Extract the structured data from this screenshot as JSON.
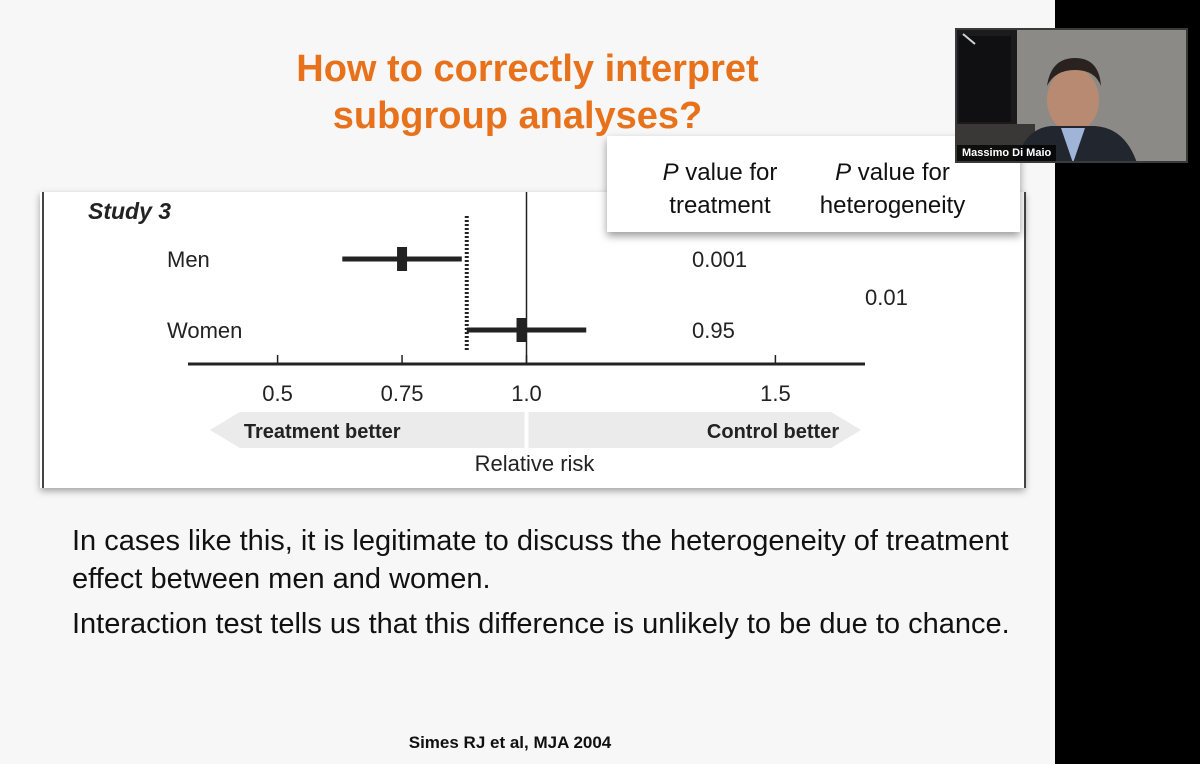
{
  "slide": {
    "title_line1": "How to correctly interpret",
    "title_line2": "subgroup analyses?",
    "pvalue_header": {
      "col1_italic": "P",
      "col1_rest_line1": " value for",
      "col1_line2": "treatment",
      "col2_italic": "P",
      "col2_rest_line1": " value for",
      "col2_line2": "heterogeneity"
    },
    "body_paragraphs": [
      "In cases like this, it is legitimate to discuss the heterogeneity of treatment effect between men and women.",
      "Interaction test tells us that this difference is unlikely to be due to chance."
    ],
    "citation": "Simes RJ et al, MJA 2004"
  },
  "chart_data": {
    "type": "forest",
    "study_label": "Study 3",
    "xlabel": "Relative risk",
    "x_ticks": [
      "0.5",
      "0.75",
      "1.0",
      "1.5"
    ],
    "x_tick_values": [
      0.5,
      0.75,
      1.0,
      1.5
    ],
    "xlim": [
      0.32,
      1.68
    ],
    "reference_line": 1.0,
    "overall_dotted_line": 0.88,
    "rows": [
      {
        "label": "Men",
        "estimate": 0.75,
        "ci_low": 0.63,
        "ci_high": 0.87,
        "p_treatment": "0.001"
      },
      {
        "label": "Women",
        "estimate": 0.99,
        "ci_low": 0.88,
        "ci_high": 1.12,
        "p_treatment": "0.95"
      }
    ],
    "p_heterogeneity": "0.01",
    "arrow_left_label": "Treatment better",
    "arrow_right_label": "Control better",
    "arrow_color": "#ebebeb"
  },
  "webcam": {
    "participant_name": "Massimo Di Maio"
  },
  "colors": {
    "title": "#e8721c",
    "background": "#f7f7f7"
  }
}
